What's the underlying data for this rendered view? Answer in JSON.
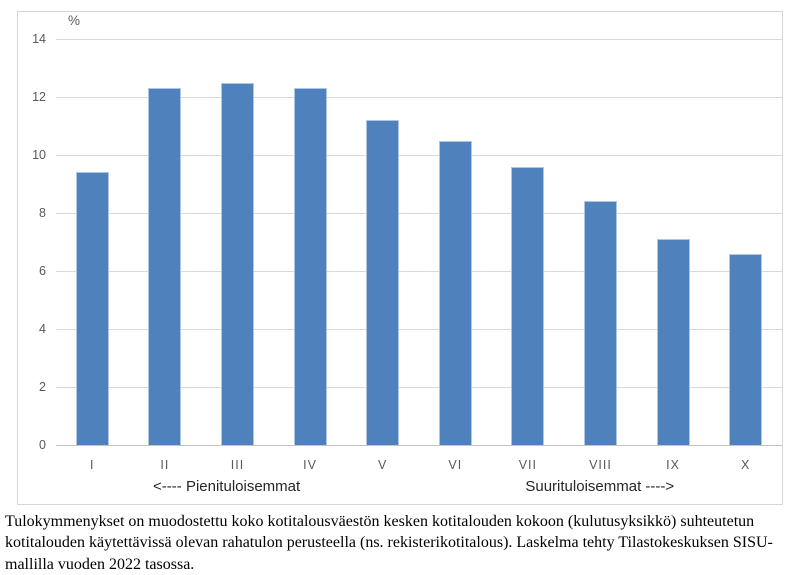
{
  "chart_data": {
    "type": "bar",
    "title": "",
    "unit_label": "%",
    "categories": [
      "I",
      "II",
      "III",
      "IV",
      "V",
      "VI",
      "VII",
      "VIII",
      "IX",
      "X"
    ],
    "values": [
      9.4,
      12.3,
      12.5,
      12.3,
      11.2,
      10.5,
      9.6,
      8.4,
      7.1,
      6.6
    ],
    "xlabel": "",
    "ylabel": "%",
    "ylim": [
      0,
      14
    ],
    "yticks": [
      0,
      2,
      4,
      6,
      8,
      10,
      12,
      14
    ],
    "grid": true,
    "legend": "none",
    "annotations": {
      "left": "<---- Pienituloisemmat",
      "right": "Suurituloisemmat ---->"
    },
    "colors": {
      "bar": "#4f81bd",
      "bar_edge": "#aec6e2",
      "gridline": "#d9d9d9",
      "zero_line": "#c3c3c3",
      "frame_border": "#d6d6d6",
      "axis_text": "#595959",
      "annotation_text": "#262626"
    }
  },
  "caption": {
    "lines": [
      "Tulokymmenykset on muodostettu koko kotitalousväestön kesken kotitalouden kokoon (kulutusyksikkö) suhteutetun",
      "kotitalouden käytettävissä olevan rahatulon perusteella (ns. rekisterikotitalous). Laskelma tehty Tilastokeskuksen SISU-",
      "mallilla vuoden 2022 tasossa."
    ]
  }
}
